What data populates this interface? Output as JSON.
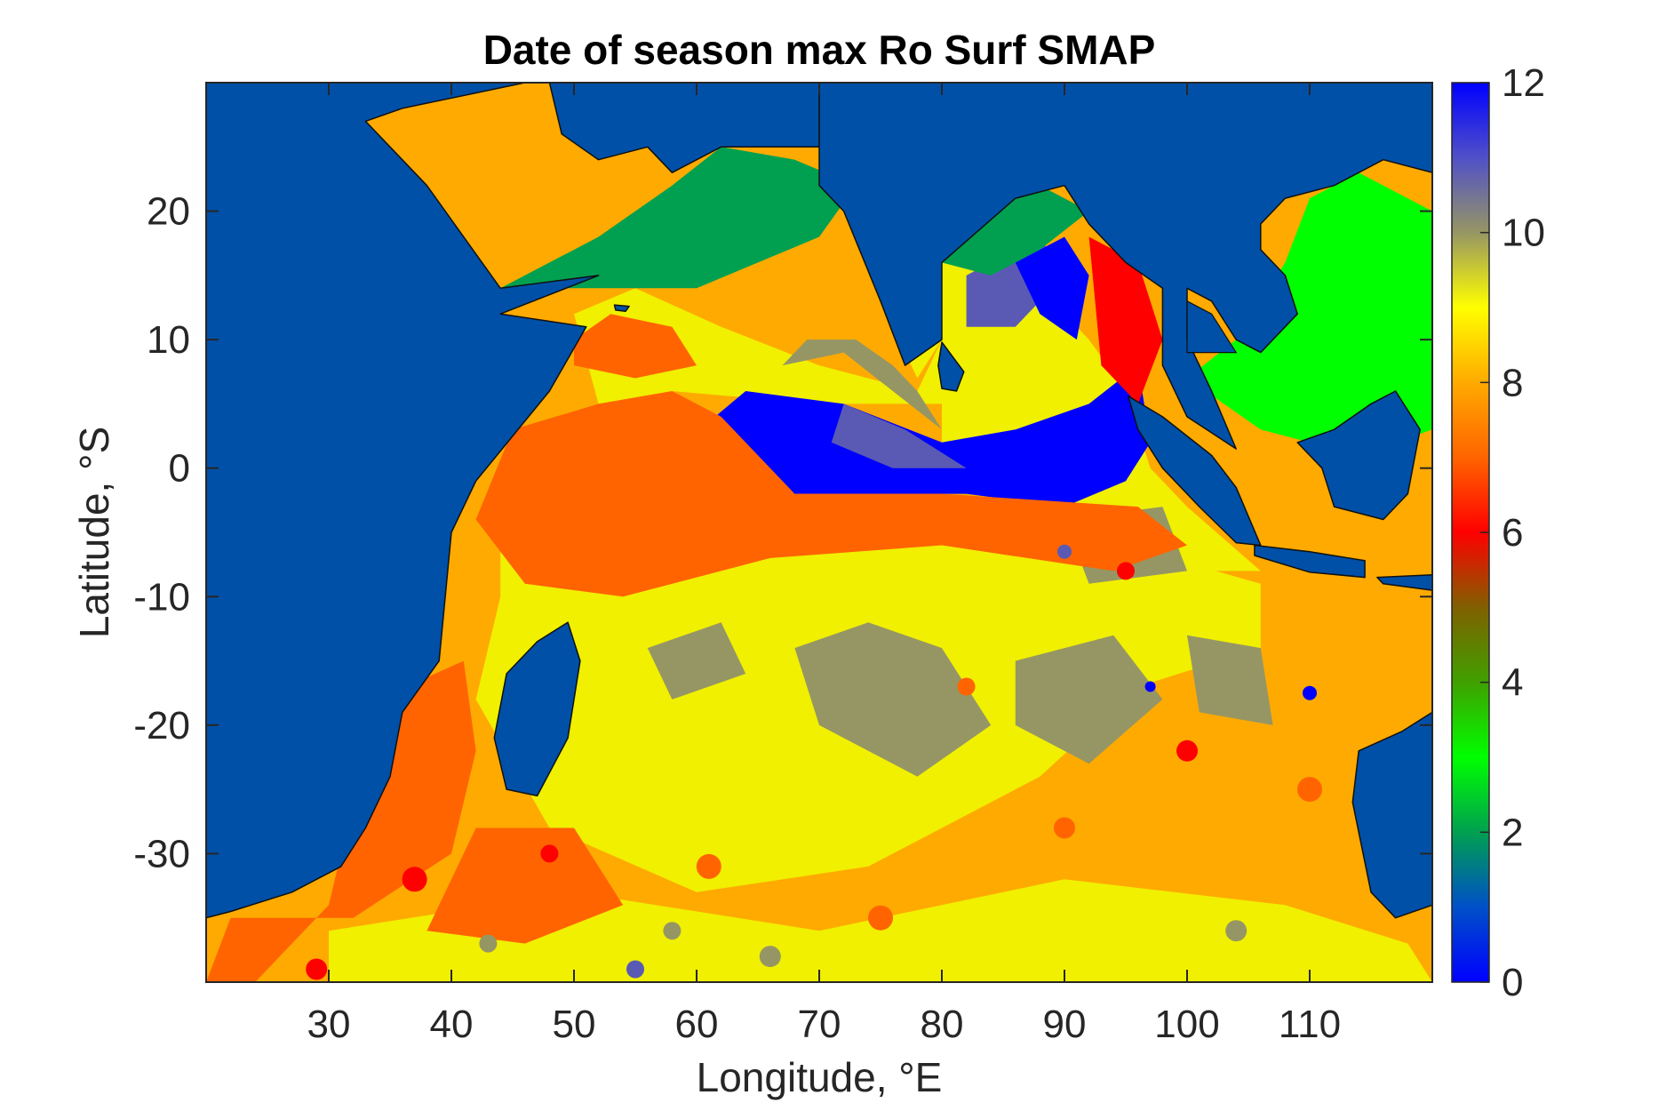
{
  "title": "Date of season max Ro Surf SMAP",
  "x_axis": {
    "label": "Longitude, °E",
    "range": [
      20,
      120
    ],
    "ticks": [
      30,
      40,
      50,
      60,
      70,
      80,
      90,
      100,
      110
    ],
    "tick_labels": [
      "30",
      "40",
      "50",
      "60",
      "70",
      "80",
      "90",
      "100",
      "110"
    ]
  },
  "y_axis": {
    "label": "Latitude, °S",
    "range": [
      -40,
      30
    ],
    "ticks": [
      20,
      10,
      0,
      -10,
      -20,
      -30
    ],
    "tick_labels": [
      "20",
      "10",
      "0",
      "-10",
      "-20",
      "-30"
    ]
  },
  "colorbar": {
    "range": [
      0,
      12
    ],
    "ticks": [
      0,
      2,
      4,
      6,
      8,
      10,
      12
    ],
    "tick_labels": [
      "0",
      "2",
      "4",
      "6",
      "8",
      "10",
      "12"
    ],
    "stops": [
      {
        "value": 0,
        "color": "#0000ff"
      },
      {
        "value": 1,
        "color": "#0050c8"
      },
      {
        "value": 2,
        "color": "#00a050"
      },
      {
        "value": 3,
        "color": "#00ff00"
      },
      {
        "value": 4,
        "color": "#40a000"
      },
      {
        "value": 5,
        "color": "#806000"
      },
      {
        "value": 6,
        "color": "#ff0000"
      },
      {
        "value": 7,
        "color": "#ff6400"
      },
      {
        "value": 8,
        "color": "#ffaa00"
      },
      {
        "value": 9,
        "color": "#ffff00"
      },
      {
        "value": 10,
        "color": "#969664"
      },
      {
        "value": 11,
        "color": "#5050c8"
      },
      {
        "value": 12,
        "color": "#0000ff"
      }
    ]
  },
  "colors": {
    "land": "#0050a8",
    "month_0": "#0000ff",
    "month_2": "#00a050",
    "month_3": "#00ff00",
    "month_6": "#ff0000",
    "month_7": "#ff6400",
    "month_8": "#ffaa00",
    "month_9": "#f0f000",
    "month_10": "#969664",
    "month_11": "#5a5ab4"
  }
}
